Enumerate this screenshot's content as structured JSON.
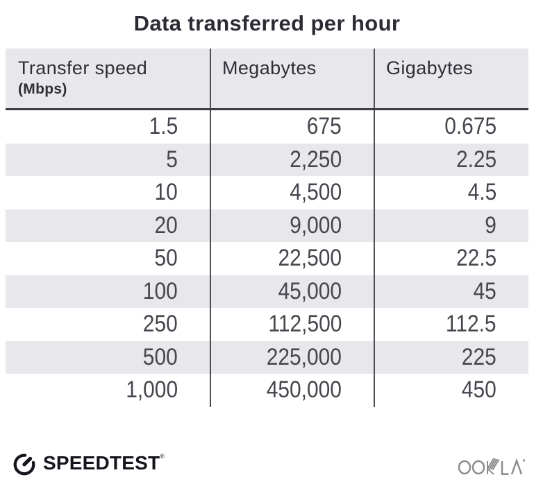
{
  "title": "Data transferred per hour",
  "table": {
    "columns": [
      {
        "label": "Transfer speed",
        "sublabel": "(Mbps)"
      },
      {
        "label": "Megabytes"
      },
      {
        "label": "Gigabytes"
      }
    ],
    "rows": [
      [
        "1.5",
        "675",
        "0.675"
      ],
      [
        "5",
        "2,250",
        "2.25"
      ],
      [
        "10",
        "4,500",
        "4.5"
      ],
      [
        "20",
        "9,000",
        "9"
      ],
      [
        "50",
        "22,500",
        "22.5"
      ],
      [
        "100",
        "45,000",
        "45"
      ],
      [
        "250",
        "112,500",
        "112.5"
      ],
      [
        "500",
        "225,000",
        "225"
      ],
      [
        "1,000",
        "450,000",
        "450"
      ]
    ]
  },
  "chart_data": {
    "type": "table",
    "title": "Data transferred per hour",
    "columns": [
      "Transfer speed (Mbps)",
      "Megabytes",
      "Gigabytes"
    ],
    "rows": [
      [
        1.5,
        675,
        0.675
      ],
      [
        5,
        2250,
        2.25
      ],
      [
        10,
        4500,
        4.5
      ],
      [
        20,
        9000,
        9
      ],
      [
        50,
        22500,
        22.5
      ],
      [
        100,
        45000,
        45
      ],
      [
        250,
        112500,
        112.5
      ],
      [
        500,
        225000,
        225
      ],
      [
        1000,
        450000,
        450
      ]
    ]
  },
  "footer": {
    "speedtest_label": "SPEEDTEST",
    "speedtest_trademark": "®",
    "ookla_label": "OOKLA"
  },
  "colors": {
    "header_bg": "#e8e8ec",
    "stripe_bg": "#e8e8ec",
    "divider": "#4d4d52",
    "header_border": "#3c3c40",
    "title_text": "#2b2b33",
    "header_text": "#2e2e36",
    "number_text": "#46464e",
    "speedtest_dark": "#15151d",
    "ookla_gray": "#8d8d8d"
  }
}
